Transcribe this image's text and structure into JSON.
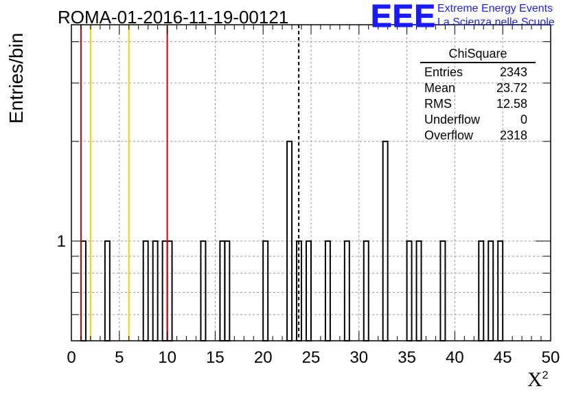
{
  "figure": {
    "title": "ROMA-01-2016-11-19-00121",
    "ylabel": "Entries/bin",
    "xlabel_base": "X",
    "xlabel_sup": "2"
  },
  "logo": {
    "mark": "EEE",
    "line1": "Extreme Energy Events",
    "line2": "La Scienza nelle Scuole",
    "color": "#1a1aff"
  },
  "stats": {
    "title": "ChiSquare",
    "rows": [
      {
        "label": "Entries",
        "value": "2343"
      },
      {
        "label": "Mean",
        "value": "23.72"
      },
      {
        "label": "RMS",
        "value": "12.58"
      },
      {
        "label": "Underflow",
        "value": "0"
      },
      {
        "label": "Overflow",
        "value": "2318"
      }
    ]
  },
  "chart_data": {
    "type": "bar",
    "title": "ROMA-01-2016-11-19-00121",
    "xlabel": "X²",
    "ylabel": "Entries/bin",
    "xlim": [
      0,
      50
    ],
    "ylog": true,
    "ylim": [
      0.5,
      4.5
    ],
    "bin_width": 0.5,
    "x_ticks": [
      0,
      5,
      10,
      15,
      20,
      25,
      30,
      35,
      40,
      45,
      50
    ],
    "y_tick_labels": [
      {
        "value": 1,
        "label": "1"
      }
    ],
    "grid": true,
    "bins": [
      {
        "x": 1.0,
        "count": 1
      },
      {
        "x": 3.5,
        "count": 1
      },
      {
        "x": 7.5,
        "count": 1
      },
      {
        "x": 8.5,
        "count": 1
      },
      {
        "x": 9.5,
        "count": 1
      },
      {
        "x": 10.0,
        "count": 1
      },
      {
        "x": 13.5,
        "count": 1
      },
      {
        "x": 15.5,
        "count": 1
      },
      {
        "x": 16.0,
        "count": 1
      },
      {
        "x": 20.0,
        "count": 1
      },
      {
        "x": 22.5,
        "count": 2
      },
      {
        "x": 23.5,
        "count": 1
      },
      {
        "x": 24.5,
        "count": 1
      },
      {
        "x": 26.5,
        "count": 1
      },
      {
        "x": 28.5,
        "count": 1
      },
      {
        "x": 30.5,
        "count": 1
      },
      {
        "x": 32.5,
        "count": 2
      },
      {
        "x": 35.0,
        "count": 1
      },
      {
        "x": 36.0,
        "count": 1
      },
      {
        "x": 38.5,
        "count": 1
      },
      {
        "x": 42.5,
        "count": 1
      },
      {
        "x": 43.5,
        "count": 1
      },
      {
        "x": 44.5,
        "count": 1
      }
    ],
    "vertical_lines": [
      {
        "x": 1.0,
        "color": "#dd0000",
        "style": "solid"
      },
      {
        "x": 2.0,
        "color": "#ffcc00",
        "style": "solid"
      },
      {
        "x": 6.0,
        "color": "#ffcc00",
        "style": "solid"
      },
      {
        "x": 10.0,
        "color": "#dd0000",
        "style": "solid"
      },
      {
        "x": 23.72,
        "color": "#000000",
        "style": "dashed"
      }
    ]
  }
}
